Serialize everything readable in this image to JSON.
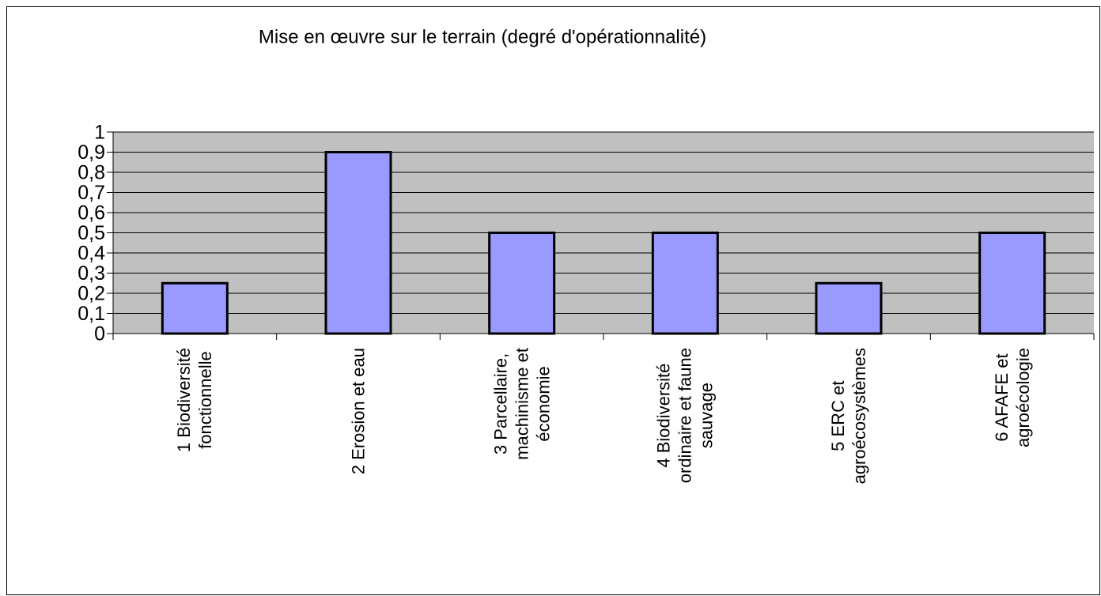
{
  "chart_data": {
    "type": "bar",
    "title": "Mise en œuvre sur le terrain (degré d'opérationnalité)",
    "categories": [
      "1 Biodiversité\nfonctionnelle",
      "2 Erosion et eau",
      "3 Parcellaire,\nmachinisme et\néconomie",
      "4 Biodiversité\nordinaire et faune\nsauvage",
      "5 ERC et\nagroécosystèmes",
      "6 AFAFE et\nagroécologie"
    ],
    "values": [
      0.25,
      0.9,
      0.5,
      0.5,
      0.25,
      0.5
    ],
    "color": "#9999ff",
    "ylim": [
      0,
      1
    ],
    "yticks": [
      0,
      {
        "value": 0.1,
        "label": "0,1"
      },
      {
        "value": 0.2,
        "label": "0,2"
      },
      {
        "value": 0.3,
        "label": "0,3"
      },
      {
        "value": 0.4,
        "label": "0,4"
      },
      {
        "value": 0.5,
        "label": "0,5"
      },
      {
        "value": 0.6,
        "label": "0,6"
      },
      {
        "value": 0.7,
        "label": "0,7"
      },
      {
        "value": 0.8,
        "label": "0,8"
      },
      {
        "value": 0.9,
        "label": "0,9"
      },
      1
    ],
    "grid": true
  }
}
